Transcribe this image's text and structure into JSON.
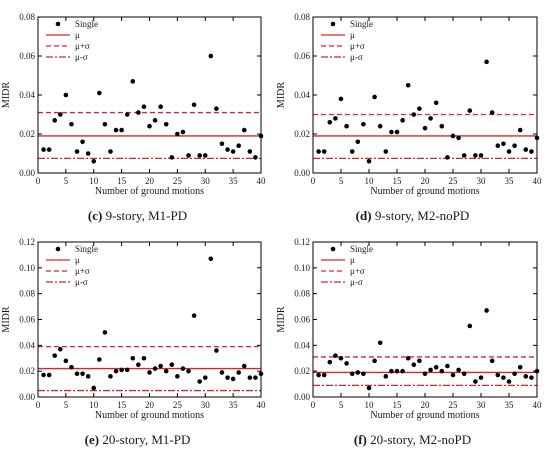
{
  "panels": [
    {
      "caption_letter": "(c)",
      "caption_text": " 9-story, M1-PD",
      "chart_data": {
        "type": "scatter",
        "xlabel": "Number of ground motions",
        "ylabel": "MIDR",
        "xlim": [
          0,
          40
        ],
        "ylim": [
          0,
          0.08
        ],
        "xticks": [
          "0",
          "5",
          "10",
          "15",
          "20",
          "25",
          "30",
          "35",
          "40"
        ],
        "yticks": [
          "0.00",
          "0.02",
          "0.04",
          "0.06",
          "0.08"
        ],
        "legend": [
          "Single",
          "μ",
          "μ+σ",
          "μ-σ"
        ],
        "legend_position": "top-left",
        "mean": 0.019,
        "mean_plus_sigma": 0.031,
        "mean_minus_sigma": 0.0075,
        "x": [
          1,
          2,
          3,
          4,
          5,
          6,
          7,
          8,
          9,
          10,
          11,
          12,
          13,
          14,
          15,
          16,
          17,
          18,
          19,
          20,
          21,
          22,
          23,
          24,
          25,
          26,
          27,
          28,
          29,
          30,
          31,
          32,
          33,
          34,
          35,
          36,
          37,
          38,
          39,
          40
        ],
        "y": [
          0.012,
          0.012,
          0.027,
          0.03,
          0.04,
          0.025,
          0.011,
          0.016,
          0.01,
          0.006,
          0.041,
          0.025,
          0.011,
          0.022,
          0.022,
          0.03,
          0.047,
          0.031,
          0.034,
          0.024,
          0.027,
          0.034,
          0.025,
          0.008,
          0.02,
          0.021,
          0.009,
          0.035,
          0.009,
          0.009,
          0.06,
          0.033,
          0.015,
          0.012,
          0.011,
          0.014,
          0.022,
          0.011,
          0.008,
          0.019
        ]
      }
    },
    {
      "caption_letter": "(d)",
      "caption_text": " 9-story, M2-noPD",
      "chart_data": {
        "type": "scatter",
        "xlabel": "Number of ground motions",
        "ylabel": "MIDR",
        "xlim": [
          0,
          40
        ],
        "ylim": [
          0,
          0.08
        ],
        "xticks": [
          "0",
          "5",
          "10",
          "15",
          "20",
          "25",
          "30",
          "35",
          "40"
        ],
        "yticks": [
          "0.00",
          "0.02",
          "0.04",
          "0.06",
          "0.08"
        ],
        "legend": [
          "Single",
          "μ",
          "μ+σ",
          "μ-σ"
        ],
        "legend_position": "top-left",
        "mean": 0.019,
        "mean_plus_sigma": 0.03,
        "mean_minus_sigma": 0.0075,
        "x": [
          1,
          2,
          3,
          4,
          5,
          6,
          7,
          8,
          9,
          10,
          11,
          12,
          13,
          14,
          15,
          16,
          17,
          18,
          19,
          20,
          21,
          22,
          23,
          24,
          25,
          26,
          27,
          28,
          29,
          30,
          31,
          32,
          33,
          34,
          35,
          36,
          37,
          38,
          39,
          40
        ],
        "y": [
          0.011,
          0.011,
          0.026,
          0.028,
          0.038,
          0.024,
          0.011,
          0.016,
          0.025,
          0.006,
          0.039,
          0.024,
          0.011,
          0.021,
          0.021,
          0.027,
          0.045,
          0.03,
          0.033,
          0.023,
          0.028,
          0.036,
          0.024,
          0.008,
          0.019,
          0.018,
          0.009,
          0.032,
          0.009,
          0.009,
          0.057,
          0.031,
          0.014,
          0.015,
          0.011,
          0.014,
          0.022,
          0.012,
          0.011,
          0.018
        ]
      }
    },
    {
      "caption_letter": "(e)",
      "caption_text": " 20-story, M1-PD",
      "chart_data": {
        "type": "scatter",
        "xlabel": "Number of ground motions",
        "ylabel": "MIDR",
        "xlim": [
          0,
          40
        ],
        "ylim": [
          0,
          0.12
        ],
        "xticks": [
          "0",
          "5",
          "10",
          "15",
          "20",
          "25",
          "30",
          "35",
          "40"
        ],
        "yticks": [
          "0.00",
          "0.02",
          "0.04",
          "0.06",
          "0.08",
          "0.10",
          "0.12"
        ],
        "legend": [
          "Single",
          "μ",
          "μ+σ",
          "μ-σ"
        ],
        "legend_position": "top-left",
        "mean": 0.022,
        "mean_plus_sigma": 0.039,
        "mean_minus_sigma": 0.005,
        "x": [
          1,
          2,
          3,
          4,
          5,
          6,
          7,
          8,
          9,
          10,
          11,
          12,
          13,
          14,
          15,
          16,
          17,
          18,
          19,
          20,
          21,
          22,
          23,
          24,
          25,
          26,
          27,
          28,
          29,
          30,
          31,
          32,
          33,
          34,
          35,
          36,
          37,
          38,
          39,
          40
        ],
        "y": [
          0.017,
          0.017,
          0.032,
          0.037,
          0.028,
          0.023,
          0.018,
          0.018,
          0.016,
          0.007,
          0.029,
          0.05,
          0.016,
          0.02,
          0.021,
          0.021,
          0.03,
          0.025,
          0.03,
          0.019,
          0.022,
          0.024,
          0.02,
          0.025,
          0.016,
          0.022,
          0.02,
          0.063,
          0.012,
          0.015,
          0.107,
          0.036,
          0.019,
          0.015,
          0.014,
          0.019,
          0.024,
          0.015,
          0.015,
          0.018
        ]
      }
    },
    {
      "caption_letter": "(f)",
      "caption_text": " 20-story, M2-noPD",
      "chart_data": {
        "type": "scatter",
        "xlabel": "Number of ground motions",
        "ylabel": "MIDR",
        "xlim": [
          0,
          40
        ],
        "ylim": [
          0,
          0.12
        ],
        "xticks": [
          "0",
          "5",
          "10",
          "15",
          "20",
          "25",
          "30",
          "35",
          "40"
        ],
        "yticks": [
          "0.00",
          "0.02",
          "0.04",
          "0.06",
          "0.08",
          "0.10",
          "0.12"
        ],
        "legend": [
          "Single",
          "μ",
          "μ+σ",
          "μ-σ"
        ],
        "legend_position": "top-left",
        "mean": 0.019,
        "mean_plus_sigma": 0.031,
        "mean_minus_sigma": 0.009,
        "x": [
          1,
          2,
          3,
          4,
          5,
          6,
          7,
          8,
          9,
          10,
          11,
          12,
          13,
          14,
          15,
          16,
          17,
          18,
          19,
          20,
          21,
          22,
          23,
          24,
          25,
          26,
          27,
          28,
          29,
          30,
          31,
          32,
          33,
          34,
          35,
          36,
          37,
          38,
          39,
          40
        ],
        "y": [
          0.017,
          0.017,
          0.027,
          0.032,
          0.03,
          0.026,
          0.018,
          0.019,
          0.018,
          0.007,
          0.028,
          0.042,
          0.016,
          0.02,
          0.02,
          0.02,
          0.03,
          0.025,
          0.028,
          0.018,
          0.021,
          0.023,
          0.02,
          0.024,
          0.017,
          0.021,
          0.018,
          0.055,
          0.012,
          0.015,
          0.067,
          0.028,
          0.017,
          0.015,
          0.012,
          0.018,
          0.023,
          0.016,
          0.015,
          0.02
        ]
      }
    }
  ],
  "colors": {
    "mean": "#d62728",
    "band": "#d62728",
    "point": "#000000",
    "axis": "#000000"
  }
}
